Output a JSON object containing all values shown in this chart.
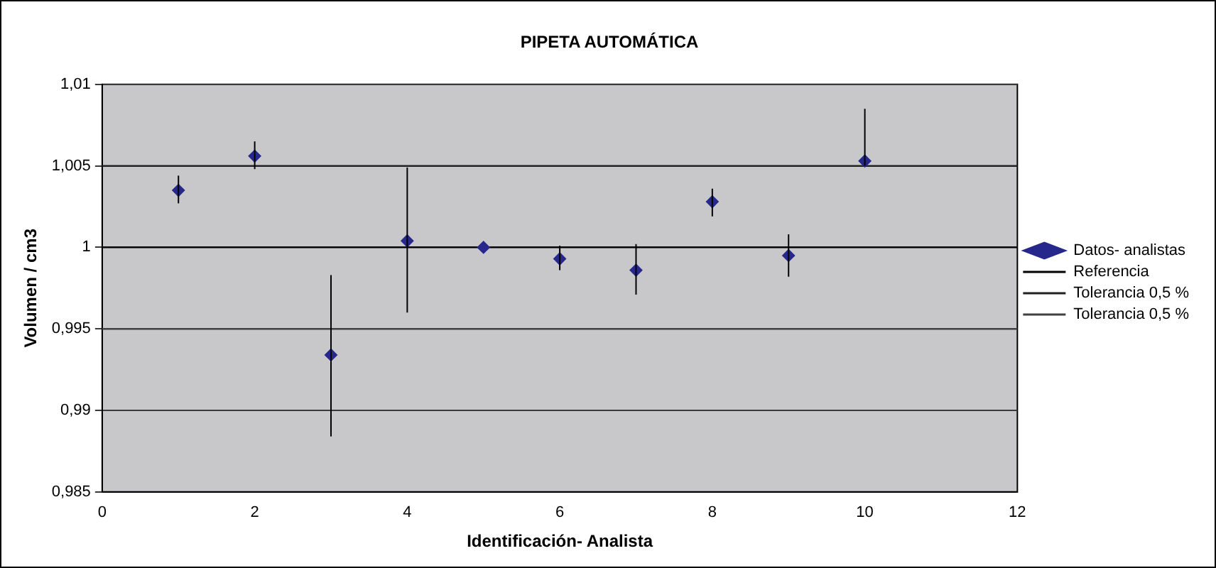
{
  "chart_data": {
    "type": "scatter",
    "title": "PIPETA AUTOMÁTICA",
    "xlabel": "Identificación- Analista",
    "ylabel": "Volumen / cm3",
    "xlim": [
      0,
      12
    ],
    "xticks": [
      0,
      2,
      4,
      6,
      8,
      10,
      12
    ],
    "ylim": [
      0.985,
      1.01
    ],
    "yticks": [
      {
        "value": 0.985,
        "label": "0,985"
      },
      {
        "value": 0.99,
        "label": "0,99"
      },
      {
        "value": 0.995,
        "label": "0,995"
      },
      {
        "value": 1,
        "label": "1"
      },
      {
        "value": 1.005,
        "label": "1,005"
      },
      {
        "value": 1.01,
        "label": "1,01"
      }
    ],
    "grid": "y",
    "legend": "right",
    "series": [
      {
        "name": "Datos- analistas",
        "marker": "diamond",
        "color": "#26288c",
        "x": [
          1,
          2,
          3,
          4,
          5,
          6,
          7,
          8,
          9,
          10
        ],
        "values": [
          1.0035,
          1.0056,
          0.9934,
          1.0004,
          1.0,
          0.9993,
          0.9986,
          1.0028,
          0.9995,
          1.0053
        ],
        "errors": [
          [
            1.0027,
            1.0044
          ],
          [
            1.0048,
            1.0065
          ],
          [
            0.9884,
            0.9983
          ],
          [
            0.996,
            1.0049
          ],
          null,
          [
            0.9986,
            1.0001
          ],
          [
            0.9971,
            1.0002
          ],
          [
            1.0019,
            1.0036
          ],
          [
            0.9982,
            1.0008
          ],
          [
            1.005,
            1.0085
          ]
        ]
      },
      {
        "name": "Referencia",
        "type": "line",
        "marker": "none",
        "color": "#000000",
        "x": [
          0,
          12
        ],
        "values": [
          1,
          1
        ]
      },
      {
        "name": "Tolerancia 0,5 %",
        "type": "line",
        "marker": "none",
        "color": "#202020",
        "x": [
          0,
          12
        ],
        "values": [
          1.005,
          1.005
        ]
      },
      {
        "name": "Tolerancia 0,5 %",
        "type": "line",
        "marker": "none",
        "color": "#404040",
        "x": [
          0,
          12
        ],
        "values": [
          0.995,
          0.995
        ]
      }
    ]
  }
}
